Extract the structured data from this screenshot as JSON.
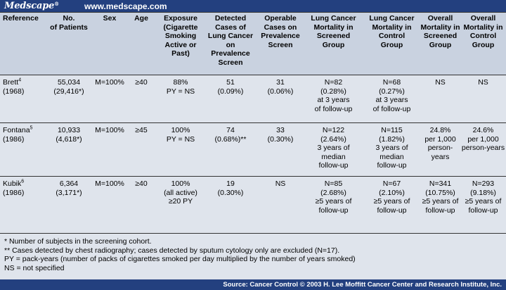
{
  "brand": {
    "logo": "Medscape",
    "registered": "®",
    "url": "www.medscape.com"
  },
  "table": {
    "headers": [
      "Reference",
      "No.\nof Patients",
      "Sex",
      "Age",
      "Exposure\n(Cigarette\nSmoking\nActive or\nPast)",
      "Detected\nCases of\nLung Cancer\non\nPrevalence\nScreen",
      "Operable\nCases on\nPrevalence\nScreen",
      "Lung Cancer\nMortality in\nScreened\nGroup",
      "Lung Cancer\nMortality in\nControl\nGroup",
      "Overall\nMortality in\nScreened\nGroup",
      "Overall\nMortality in\nControl\nGroup"
    ],
    "rows": [
      {
        "ref_name": "Brett",
        "ref_sup": "4",
        "ref_year": "(1968)",
        "cells": [
          "55,034\n(29,416*)",
          "M=100%",
          "≥40",
          "88%\nPY = NS",
          "51\n(0.09%)",
          "31\n(0.06%)",
          "N=82\n(0.28%)\nat 3 years\nof follow-up",
          "N=68\n(0.27%)\nat 3 years\nof follow-up",
          "NS",
          "NS"
        ]
      },
      {
        "ref_name": "Fontana",
        "ref_sup": "5",
        "ref_year": "(1986)",
        "cells": [
          "10,933\n(4,618*)",
          "M=100%",
          "≥45",
          "100%\nPY = NS",
          "74\n(0.68%)**",
          "33\n(0.30%)",
          "N=122\n(2.64%)\n3 years of\nmedian\nfollow-up",
          "N=115\n(1.82%)\n3 years of\nmedian\nfollow-up",
          "24.8%\nper 1,000\nperson-years",
          "24.6%\nper 1,000\nperson-years"
        ]
      },
      {
        "ref_name": "Kubik",
        "ref_sup": "6",
        "ref_year": "(1986)",
        "cells": [
          "6,364\n(3,171*)",
          "M=100%",
          "≥40",
          "100%\n(all active)\n≥20 PY",
          "19\n(0.30%)",
          "NS",
          "N=85\n(2.68%)\n≥5 years of\nfollow-up",
          "N=67\n(2.10%)\n≥5 years of\nfollow-up",
          "N=341\n(10.75%)\n≥5 years of\nfollow-up",
          "N=293\n(9.18%)\n≥5 years of\nfollow-up"
        ]
      }
    ]
  },
  "notes": [
    "* Number of subjects in the screening cohort.",
    "** Cases detected by chest radiography; cases detected by sputum cytology only are excluded (N=17).",
    "PY = pack-years (number of packs of cigarettes smoked per day multiplied by the number of years smoked)",
    "NS = not specified"
  ],
  "source": "Source: Cancer Control © 2003 H. Lee Moffitt Cancer Center and Research Institute, Inc."
}
